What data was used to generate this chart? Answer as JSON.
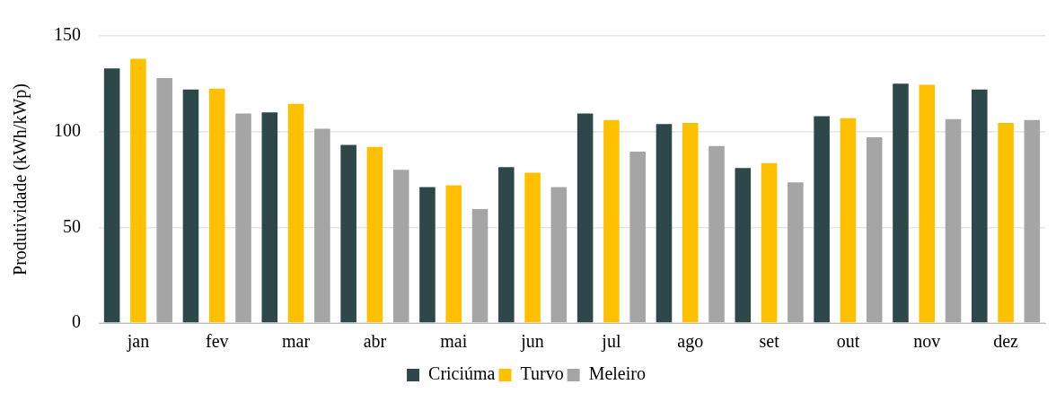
{
  "chart_data": {
    "type": "bar",
    "ylabel": "Produtividade (kWh/kWp)",
    "categories": [
      "jan",
      "fev",
      "mar",
      "abr",
      "mai",
      "jun",
      "jul",
      "ago",
      "set",
      "out",
      "nov",
      "dez"
    ],
    "series": [
      {
        "name": "Criciúma",
        "color": "#2e4749",
        "values": [
          133,
          122,
          110,
          93,
          71,
          81.5,
          109.5,
          104,
          81,
          108,
          125,
          122
        ]
      },
      {
        "name": "Turvo",
        "color": "#ffc000",
        "values": [
          138,
          122.5,
          114.5,
          92,
          72,
          78.5,
          106,
          104.5,
          83.5,
          107,
          124.5,
          104.5
        ]
      },
      {
        "name": "Meleiro",
        "color": "#a5a5a5",
        "values": [
          128,
          109.5,
          101.5,
          80,
          59.5,
          71,
          89.5,
          92.5,
          73.5,
          97,
          106.5,
          106
        ]
      }
    ],
    "ylim": [
      0,
      150
    ],
    "yticks": [
      0,
      50,
      100,
      150
    ],
    "grid": "y",
    "legend": "bottom"
  }
}
